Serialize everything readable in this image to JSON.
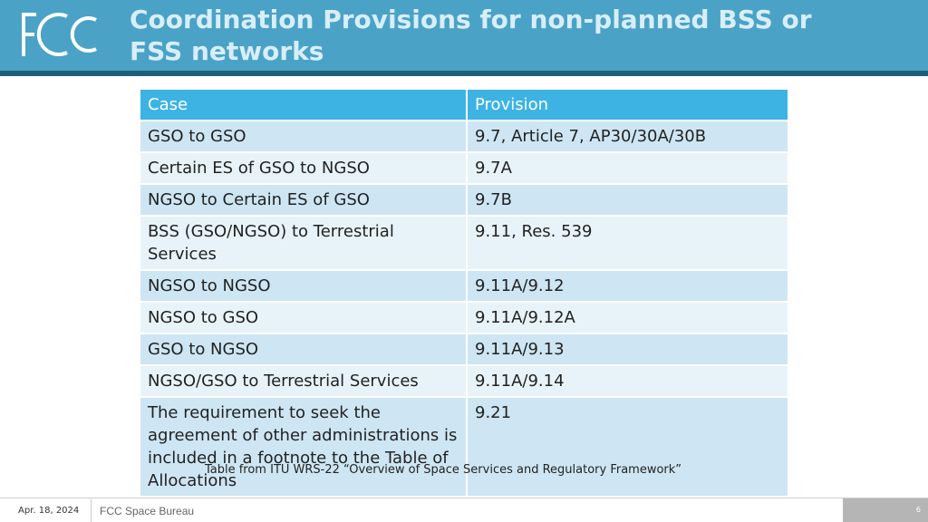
{
  "header": {
    "title": "Coordination Provisions for non-planned BSS or FSS networks"
  },
  "table": {
    "columns": [
      "Case",
      "Provision"
    ],
    "rows": [
      [
        "GSO to GSO",
        "9.7, Article 7, AP30/30A/30B"
      ],
      [
        "Certain ES of GSO to NGSO",
        "9.7A"
      ],
      [
        "NGSO to Certain ES of GSO",
        "9.7B"
      ],
      [
        "BSS (GSO/NGSO) to Terrestrial Services",
        "9.11, Res. 539"
      ],
      [
        "NGSO to NGSO",
        "9.11A/9.12"
      ],
      [
        "NGSO to GSO",
        "9.11A/9.12A"
      ],
      [
        "GSO to NGSO",
        "9.11A/9.13"
      ],
      [
        "NGSO/GSO to Terrestrial Services",
        "9.11A/9.14"
      ],
      [
        "The requirement to seek the agreement of other administrations is included in a footnote to the Table of Allocations",
        "9.21"
      ]
    ],
    "caption": "Table from ITU WRS-22 “Overview of Space Services and Regulatory Framework”"
  },
  "footer": {
    "date": "Apr. 18, 2024",
    "organization": "FCC Space Bureau",
    "page": "6"
  }
}
